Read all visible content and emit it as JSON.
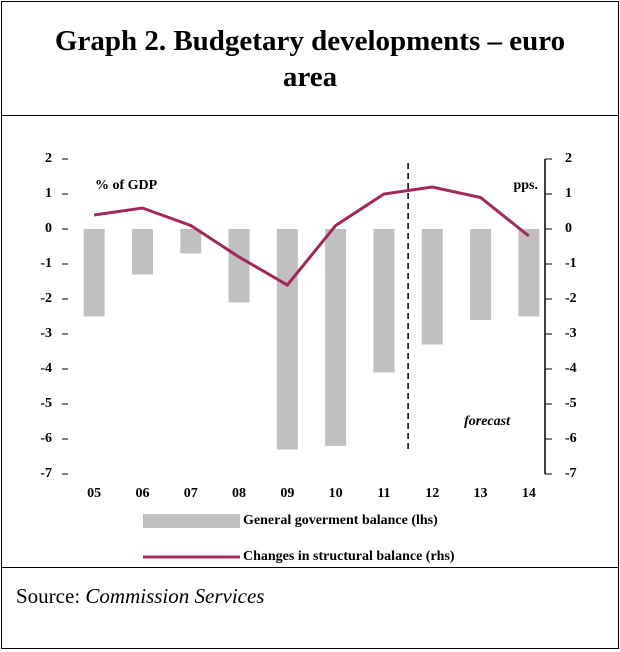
{
  "chart_data": {
    "type": "bar",
    "title": "Graph 2. Budgetary developments – euro area",
    "categories": [
      "05",
      "06",
      "07",
      "08",
      "09",
      "10",
      "11",
      "12",
      "13",
      "14"
    ],
    "series": [
      {
        "name": "General goverment balance (lhs)",
        "type": "bar",
        "color": "#c0c0c0",
        "axis": "y",
        "values": [
          -2.5,
          -1.3,
          -0.7,
          -2.1,
          -6.3,
          -6.2,
          -4.1,
          -3.3,
          -2.6,
          -2.5
        ]
      },
      {
        "name": "Changes in structural balance (rhs)",
        "type": "line",
        "color": "#a0285c",
        "axis": "y2",
        "values": [
          0.4,
          0.6,
          0.1,
          -0.8,
          -1.6,
          0.1,
          1.0,
          1.2,
          0.9,
          -0.2
        ]
      }
    ],
    "ylim": [
      -7,
      2
    ],
    "yticks": [
      -7,
      -6,
      -5,
      -4,
      -3,
      -2,
      -1,
      0,
      1,
      2
    ],
    "y2lim": [
      -7,
      2
    ],
    "y2ticks": [
      -7,
      -6,
      -5,
      -4,
      -3,
      -2,
      -1,
      0,
      1,
      2
    ],
    "y_annotation": "% of GDP",
    "y2_annotation": "pps.",
    "forecast_annotation": "forecast",
    "source_label": "Source:",
    "source_text": "Commission Services"
  }
}
